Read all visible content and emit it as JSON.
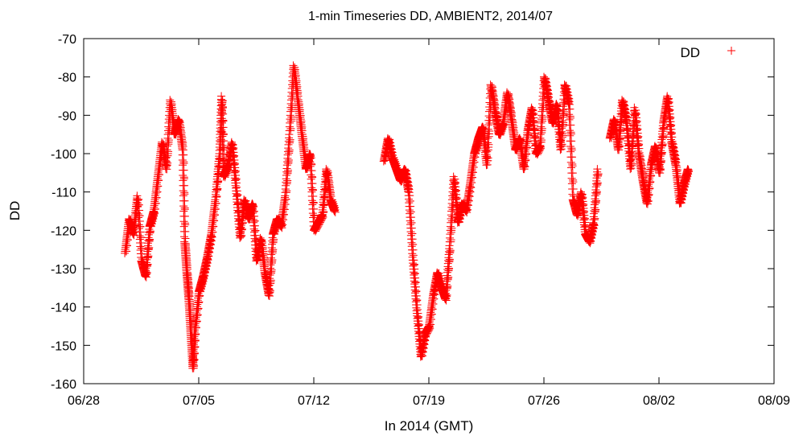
{
  "chart_data": {
    "type": "scatter",
    "title": "1-min Timeseries DD, AMBIENT2, 2014/07",
    "xlabel": "In 2014 (GMT)",
    "ylabel": "DD",
    "xlim": [
      "2014-06-28",
      "2014-08-09"
    ],
    "ylim": [
      -160,
      -70
    ],
    "x_ticks": [
      "06/28",
      "07/05",
      "07/12",
      "07/19",
      "07/26",
      "08/02",
      "08/09"
    ],
    "y_ticks": [
      -160,
      -150,
      -140,
      -130,
      -120,
      -110,
      -100,
      -90,
      -80,
      -70
    ],
    "grid": false,
    "legend_position": "top-right",
    "marker": "+",
    "series": [
      {
        "name": "DD",
        "color": "#ff0000",
        "points": [
          [
            "2014-06-30 12:00",
            -126
          ],
          [
            "2014-06-30 18:00",
            -117
          ],
          [
            "2014-07-01 00:00",
            -121
          ],
          [
            "2014-07-01 06:00",
            -111
          ],
          [
            "2014-07-01 12:00",
            -128
          ],
          [
            "2014-07-01 18:00",
            -132
          ],
          [
            "2014-07-02 00:00",
            -119
          ],
          [
            "2014-07-02 06:00",
            -115
          ],
          [
            "2014-07-02 12:00",
            -106
          ],
          [
            "2014-07-02 18:00",
            -97
          ],
          [
            "2014-07-03 00:00",
            -104
          ],
          [
            "2014-07-03 06:00",
            -86
          ],
          [
            "2014-07-03 12:00",
            -95
          ],
          [
            "2014-07-03 18:00",
            -91
          ],
          [
            "2014-07-04 00:00",
            -99
          ],
          [
            "2014-07-04 03:00",
            -123
          ],
          [
            "2014-07-04 06:00",
            -131
          ],
          [
            "2014-07-04 09:00",
            -138
          ],
          [
            "2014-07-04 12:00",
            -147
          ],
          [
            "2014-07-04 15:00",
            -156
          ],
          [
            "2014-07-04 18:00",
            -146
          ],
          [
            "2014-07-05 00:00",
            -136
          ],
          [
            "2014-07-05 06:00",
            -132
          ],
          [
            "2014-07-05 12:00",
            -127
          ],
          [
            "2014-07-05 18:00",
            -121
          ],
          [
            "2014-07-06 00:00",
            -112
          ],
          [
            "2014-07-06 06:00",
            -100
          ],
          [
            "2014-07-06 09:00",
            -85
          ],
          [
            "2014-07-06 12:00",
            -106
          ],
          [
            "2014-07-06 18:00",
            -103
          ],
          [
            "2014-07-07 00:00",
            -97
          ],
          [
            "2014-07-07 06:00",
            -109
          ],
          [
            "2014-07-07 12:00",
            -122
          ],
          [
            "2014-07-07 18:00",
            -112
          ],
          [
            "2014-07-08 00:00",
            -117
          ],
          [
            "2014-07-08 06:00",
            -113
          ],
          [
            "2014-07-08 12:00",
            -128
          ],
          [
            "2014-07-08 18:00",
            -122
          ],
          [
            "2014-07-09 00:00",
            -131
          ],
          [
            "2014-07-09 06:00",
            -137
          ],
          [
            "2014-07-09 12:00",
            -121
          ],
          [
            "2014-07-09 18:00",
            -117
          ],
          [
            "2014-07-10 00:00",
            -119
          ],
          [
            "2014-07-10 06:00",
            -111
          ],
          [
            "2014-07-10 12:00",
            -95
          ],
          [
            "2014-07-10 18:00",
            -77
          ],
          [
            "2014-07-11 00:00",
            -86
          ],
          [
            "2014-07-11 06:00",
            -95
          ],
          [
            "2014-07-11 12:00",
            -104
          ],
          [
            "2014-07-11 18:00",
            -100
          ],
          [
            "2014-07-12 00:00",
            -120
          ],
          [
            "2014-07-12 06:00",
            -118
          ],
          [
            "2014-07-12 12:00",
            -116
          ],
          [
            "2014-07-12 18:00",
            -104
          ],
          [
            "2014-07-13 00:00",
            -112
          ],
          [
            "2014-07-13 06:00",
            -115
          ],
          [
            "2014-07-16 06:00",
            -102
          ],
          [
            "2014-07-16 12:00",
            -96
          ],
          [
            "2014-07-16 18:00",
            -101
          ],
          [
            "2014-07-17 00:00",
            -104
          ],
          [
            "2014-07-17 06:00",
            -107
          ],
          [
            "2014-07-17 12:00",
            -104
          ],
          [
            "2014-07-17 18:00",
            -110
          ],
          [
            "2014-07-18 00:00",
            -127
          ],
          [
            "2014-07-18 06:00",
            -141
          ],
          [
            "2014-07-18 12:00",
            -153
          ],
          [
            "2014-07-18 18:00",
            -147
          ],
          [
            "2014-07-19 00:00",
            -145
          ],
          [
            "2014-07-19 06:00",
            -137
          ],
          [
            "2014-07-19 12:00",
            -131
          ],
          [
            "2014-07-19 18:00",
            -135
          ],
          [
            "2014-07-20 00:00",
            -138
          ],
          [
            "2014-07-20 06:00",
            -124
          ],
          [
            "2014-07-20 12:00",
            -106
          ],
          [
            "2014-07-20 18:00",
            -118
          ],
          [
            "2014-07-21 00:00",
            -113
          ],
          [
            "2014-07-21 06:00",
            -115
          ],
          [
            "2014-07-21 12:00",
            -108
          ],
          [
            "2014-07-21 18:00",
            -100
          ],
          [
            "2014-07-22 00:00",
            -96
          ],
          [
            "2014-07-22 06:00",
            -93
          ],
          [
            "2014-07-22 12:00",
            -103
          ],
          [
            "2014-07-22 18:00",
            -82
          ],
          [
            "2014-07-23 00:00",
            -89
          ],
          [
            "2014-07-23 06:00",
            -95
          ],
          [
            "2014-07-23 12:00",
            -92
          ],
          [
            "2014-07-23 18:00",
            -84
          ],
          [
            "2014-07-24 00:00",
            -91
          ],
          [
            "2014-07-24 06:00",
            -99
          ],
          [
            "2014-07-24 12:00",
            -96
          ],
          [
            "2014-07-24 18:00",
            -104
          ],
          [
            "2014-07-25 00:00",
            -94
          ],
          [
            "2014-07-25 06:00",
            -88
          ],
          [
            "2014-07-25 12:00",
            -100
          ],
          [
            "2014-07-25 18:00",
            -98
          ],
          [
            "2014-07-26 00:00",
            -80
          ],
          [
            "2014-07-26 06:00",
            -86
          ],
          [
            "2014-07-26 12:00",
            -92
          ],
          [
            "2014-07-26 18:00",
            -87
          ],
          [
            "2014-07-27 00:00",
            -99
          ],
          [
            "2014-07-27 06:00",
            -82
          ],
          [
            "2014-07-27 12:00",
            -87
          ],
          [
            "2014-07-27 18:00",
            -112
          ],
          [
            "2014-07-28 00:00",
            -116
          ],
          [
            "2014-07-28 06:00",
            -110
          ],
          [
            "2014-07-28 12:00",
            -121
          ],
          [
            "2014-07-28 18:00",
            -123
          ],
          [
            "2014-07-29 00:00",
            -118
          ],
          [
            "2014-07-29 06:00",
            -104
          ],
          [
            "2014-07-30 00:00",
            -96
          ],
          [
            "2014-07-30 06:00",
            -91
          ],
          [
            "2014-07-30 12:00",
            -99
          ],
          [
            "2014-07-30 18:00",
            -86
          ],
          [
            "2014-07-31 00:00",
            -92
          ],
          [
            "2014-07-31 06:00",
            -104
          ],
          [
            "2014-07-31 12:00",
            -88
          ],
          [
            "2014-07-31 18:00",
            -100
          ],
          [
            "2014-08-01 00:00",
            -107
          ],
          [
            "2014-08-01 06:00",
            -113
          ],
          [
            "2014-08-01 12:00",
            -103
          ],
          [
            "2014-08-01 18:00",
            -98
          ],
          [
            "2014-08-02 00:00",
            -105
          ],
          [
            "2014-08-02 06:00",
            -92
          ],
          [
            "2014-08-02 12:00",
            -85
          ],
          [
            "2014-08-02 18:00",
            -97
          ],
          [
            "2014-08-03 00:00",
            -103
          ],
          [
            "2014-08-03 06:00",
            -113
          ],
          [
            "2014-08-03 12:00",
            -108
          ],
          [
            "2014-08-03 18:00",
            -104
          ]
        ]
      }
    ]
  }
}
